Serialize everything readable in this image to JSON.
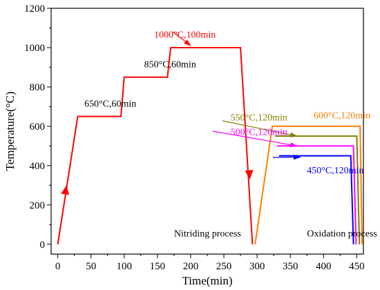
{
  "chart_data": {
    "type": "line",
    "title": "",
    "xlabel": "Time(min)",
    "ylabel": "Temperature(°C)",
    "xlim": [
      -10,
      460
    ],
    "ylim": [
      -50,
      1200
    ],
    "xticks": [
      0,
      50,
      100,
      150,
      200,
      250,
      300,
      350,
      400,
      450
    ],
    "yticks": [
      0,
      200,
      400,
      600,
      800,
      1000,
      1200
    ],
    "grid": false,
    "series": [
      {
        "color": "#ff0000",
        "points": [
          [
            0,
            0
          ],
          [
            30,
            650
          ],
          [
            95,
            650
          ],
          [
            100,
            850
          ],
          [
            165,
            850
          ],
          [
            170,
            1000
          ],
          [
            275,
            1000
          ],
          [
            293,
            0
          ]
        ]
      },
      {
        "color": "#ff7f00",
        "points": [
          [
            297,
            0
          ],
          [
            323,
            600
          ],
          [
            455,
            600
          ],
          [
            458,
            0
          ]
        ]
      },
      {
        "color": "#808000",
        "points": [
          [
            327,
            550
          ],
          [
            450,
            550
          ],
          [
            454,
            0
          ]
        ]
      },
      {
        "color": "#ff00ff",
        "points": [
          [
            330,
            500
          ],
          [
            445,
            500
          ],
          [
            449,
            0
          ]
        ]
      },
      {
        "color": "#0000ff",
        "points": [
          [
            333,
            450
          ],
          [
            441,
            450
          ],
          [
            445,
            0
          ]
        ]
      }
    ],
    "annotations": [
      {
        "text": "1000°C,100min",
        "x": 145,
        "y": 1050,
        "color": "#ff0000"
      },
      {
        "text": "850°C,60min",
        "x": 130,
        "y": 900,
        "color": "#000000"
      },
      {
        "text": "650°C,60min",
        "x": 40,
        "y": 700,
        "color": "#000000"
      },
      {
        "text": "550°C,120min",
        "x": 260,
        "y": 630,
        "color": "#808000"
      },
      {
        "text": "600°C,120min",
        "x": 385,
        "y": 640,
        "color": "#ff7f00"
      },
      {
        "text": "500°C,120min",
        "x": 260,
        "y": 555,
        "color": "#ff00ff"
      },
      {
        "text": "450°C,120min",
        "x": 375,
        "y": 360,
        "color": "#0000ff"
      },
      {
        "text": "Nitriding  process",
        "x": 175,
        "y": 40,
        "color": "#000000"
      },
      {
        "text": "Oxidation process",
        "x": 375,
        "y": 40,
        "color": "#000000"
      }
    ]
  }
}
